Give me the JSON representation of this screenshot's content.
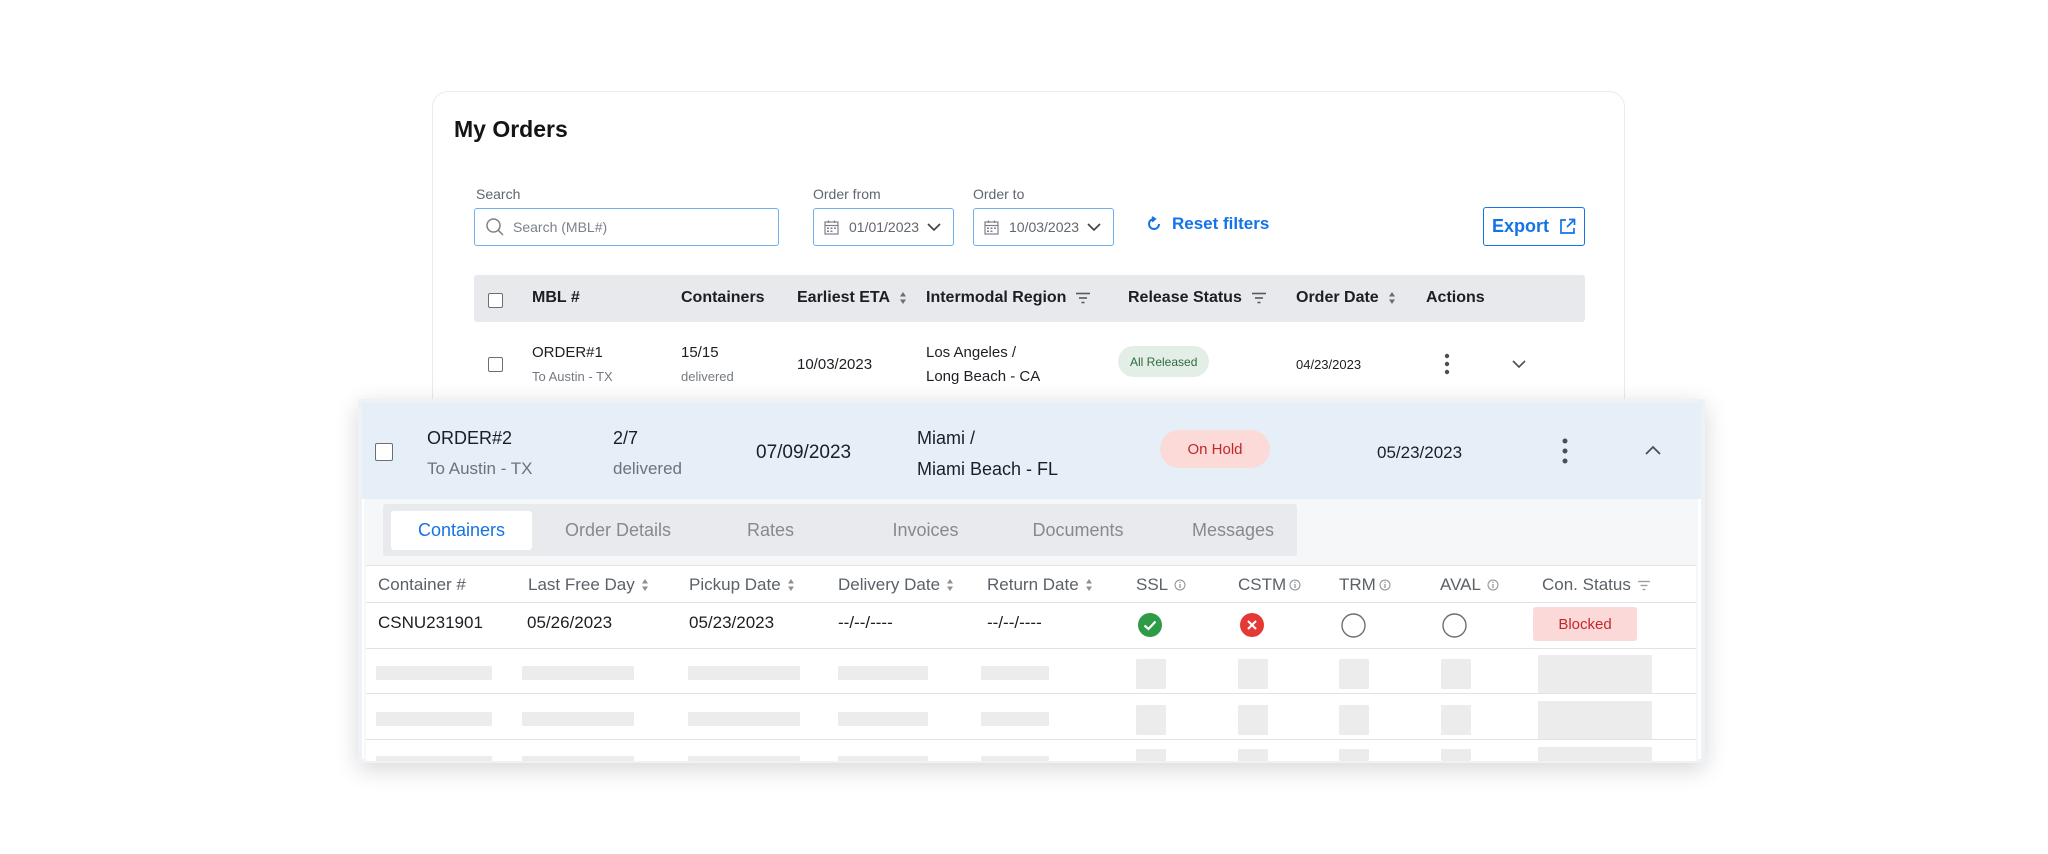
{
  "page": {
    "title": "My Orders"
  },
  "filters": {
    "search_label": "Search",
    "search_placeholder": "Search (MBL#)",
    "order_from_label": "Order from",
    "order_from_value": "01/01/2023",
    "order_to_label": "Order to",
    "order_to_value": "10/03/2023",
    "reset_label": "Reset filters",
    "export_label": "Export"
  },
  "table": {
    "columns": [
      "MBL #",
      "Containers",
      "Earliest ETA",
      "Intermodal Region",
      "Release Status",
      "Order Date",
      "Actions"
    ],
    "rows": [
      {
        "mbl": "ORDER#1",
        "destination": "To Austin - TX",
        "containers": "15/15",
        "containers_sub": "delivered",
        "eta": "10/03/2023",
        "region_line1": "Los Angeles /",
        "region_line2": "Long Beach - CA",
        "status": "All Released",
        "order_date": "04/23/2023"
      },
      {
        "mbl": "ORDER#2",
        "destination": "To Austin - TX",
        "containers": "2/7",
        "containers_sub": "delivered",
        "eta": "07/09/2023",
        "region_line1": "Miami /",
        "region_line2": "Miami Beach - FL",
        "status": "On Hold",
        "order_date": "05/23/2023"
      }
    ]
  },
  "detail_tabs": [
    "Containers",
    "Order Details",
    "Rates",
    "Invoices",
    "Documents",
    "Messages"
  ],
  "active_tab": "Containers",
  "containers_table": {
    "columns": [
      "Container #",
      "Last Free Day",
      "Pickup Date",
      "Delivery Date",
      "Return Date",
      "SSL",
      "CSTM",
      "TRM",
      "AVAL",
      "Con. Status"
    ],
    "rows": [
      {
        "container": "CSNU231901",
        "last_free_day": "05/26/2023",
        "pickup_date": "05/23/2023",
        "delivery_date": "--/--/----",
        "return_date": "--/--/----",
        "ssl": "ok",
        "cstm": "error",
        "trm": "empty",
        "aval": "empty",
        "con_status": "Blocked"
      }
    ]
  },
  "colors": {
    "accent": "#1473e6",
    "success": "#2e9b47",
    "danger": "#e53935",
    "released_bg": "#e3efe6",
    "hold_bg": "#fbdad8"
  }
}
